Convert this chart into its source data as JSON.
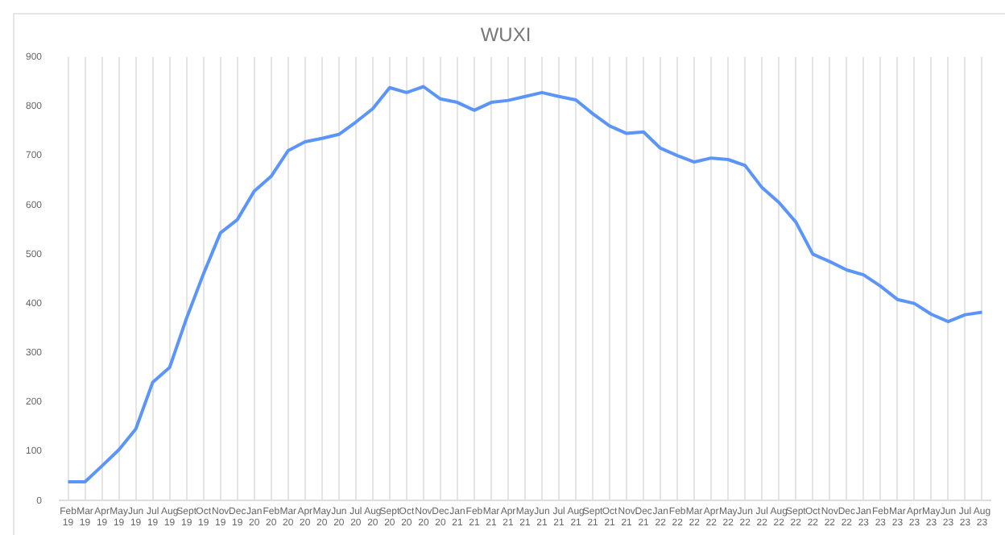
{
  "chart_data": {
    "type": "line",
    "title": "WUXI",
    "categories": [
      "Feb 19",
      "Mar 19",
      "Apr 19",
      "May 19",
      "Jun 19",
      "Jul 19",
      "Aug 19",
      "Sept 19",
      "Oct 19",
      "Nov 19",
      "Dec 19",
      "Jan 20",
      "Feb 20",
      "Mar 20",
      "Apr 20",
      "May 20",
      "Jun 20",
      "Jul 20",
      "Aug 20",
      "Sept 20",
      "Oct 20",
      "Nov 20",
      "Dec 20",
      "Jan 21",
      "Feb 21",
      "Mar 21",
      "Apr 21",
      "May 21",
      "Jun 21",
      "Jul 21",
      "Aug 21",
      "Sept 21",
      "Oct 21",
      "Nov 21",
      "Dec 21",
      "Jan 22",
      "Feb 22",
      "Mar 22",
      "Apr 22",
      "May 22",
      "Jun 22",
      "Jul 22",
      "Aug 22",
      "Sept 22",
      "Oct 22",
      "Nov 22",
      "Dec 22",
      "Jan 23",
      "Feb 23",
      "Mar 23",
      "Apr 23",
      "May 23",
      "Jun 23",
      "Jul 23",
      "Aug 23"
    ],
    "series": [
      {
        "color": "#5b95f9",
        "values": [
          38,
          38,
          70,
          103,
          145,
          240,
          270,
          370,
          460,
          543,
          570,
          628,
          658,
          710,
          728,
          735,
          743,
          768,
          795,
          838,
          828,
          840,
          815,
          808,
          792,
          808,
          812,
          820,
          828,
          820,
          813,
          785,
          760,
          745,
          748,
          715,
          700,
          687,
          695,
          692,
          680,
          635,
          605,
          565,
          500,
          485,
          468,
          458,
          435,
          408,
          400,
          378,
          363,
          377,
          382
        ]
      }
    ],
    "ylim": [
      0,
      900
    ],
    "yticks": [
      0,
      100,
      200,
      300,
      400,
      500,
      600,
      700,
      800,
      900
    ],
    "grid": "x",
    "legend": false,
    "marker": "none",
    "line_style": "solid"
  }
}
